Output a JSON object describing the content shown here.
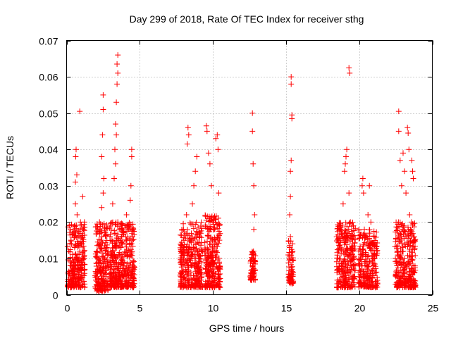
{
  "chart_data": {
    "type": "scatter",
    "title": "Day 299 of 2018, Rate Of TEC Index for receiver sthg",
    "xlabel": "GPS time / hours",
    "ylabel": "ROTI / TECUs",
    "xlim": [
      0,
      25
    ],
    "ylim": [
      0,
      0.07
    ],
    "xticks": [
      0,
      5,
      10,
      15,
      20,
      25
    ],
    "xtick_labels": [
      "0",
      "5",
      "10",
      "15",
      "20",
      "25"
    ],
    "yticks": [
      0,
      0.01,
      0.02,
      0.03,
      0.04,
      0.05,
      0.06,
      0.07
    ],
    "ytick_labels": [
      "0",
      "0.01",
      "0.02",
      "0.03",
      "0.04",
      "0.05",
      "0.06",
      "0.07"
    ],
    "grid": true,
    "marker": "+",
    "color": "#ff0000",
    "series": [
      {
        "name": "ROTI",
        "points": [
          [
            0.1,
            0.006
          ],
          [
            0.15,
            0.012
          ],
          [
            0.2,
            0.019
          ],
          [
            0.25,
            0.008
          ],
          [
            0.3,
            0.015
          ],
          [
            0.35,
            0.004
          ],
          [
            0.4,
            0.01
          ],
          [
            0.45,
            0.018
          ],
          [
            0.5,
            0.007
          ],
          [
            0.55,
            0.013
          ],
          [
            0.6,
            0.025
          ],
          [
            0.6,
            0.031
          ],
          [
            0.62,
            0.038
          ],
          [
            0.65,
            0.04
          ],
          [
            0.7,
            0.033
          ],
          [
            0.72,
            0.022
          ],
          [
            0.75,
            0.009
          ],
          [
            0.8,
            0.016
          ],
          [
            0.85,
            0.005
          ],
          [
            0.9,
            0.012
          ],
          [
            0.95,
            0.02
          ],
          [
            1.0,
            0.008
          ],
          [
            1.05,
            0.014
          ],
          [
            1.1,
            0.027
          ],
          [
            0.9,
            0.0505
          ],
          [
            0.3,
            0.002
          ],
          [
            0.5,
            0.003
          ],
          [
            0.8,
            0.0025
          ],
          [
            1.2,
            0.01
          ],
          [
            0.4,
            0.0165
          ],
          [
            2.0,
            0.004
          ],
          [
            2.1,
            0.012
          ],
          [
            2.15,
            0.018
          ],
          [
            2.2,
            0.008
          ],
          [
            2.25,
            0.02
          ],
          [
            2.3,
            0.006
          ],
          [
            2.35,
            0.015
          ],
          [
            2.4,
            0.024
          ],
          [
            2.45,
            0.044
          ],
          [
            2.5,
            0.055
          ],
          [
            2.5,
            0.051
          ],
          [
            2.55,
            0.032
          ],
          [
            2.6,
            0.01
          ],
          [
            2.65,
            0.017
          ],
          [
            2.7,
            0.005
          ],
          [
            2.75,
            0.013
          ],
          [
            2.2,
            0.0015
          ],
          [
            2.4,
            0.038
          ],
          [
            2.5,
            0.028
          ],
          [
            2.3,
            0.0095
          ],
          [
            3.0,
            0.007
          ],
          [
            3.1,
            0.015
          ],
          [
            3.15,
            0.025
          ],
          [
            3.2,
            0.009
          ],
          [
            3.25,
            0.032
          ],
          [
            3.3,
            0.04
          ],
          [
            3.35,
            0.047
          ],
          [
            3.4,
            0.053
          ],
          [
            3.45,
            0.058
          ],
          [
            3.45,
            0.0635
          ],
          [
            3.5,
            0.066
          ],
          [
            3.5,
            0.061
          ],
          [
            3.4,
            0.044
          ],
          [
            3.35,
            0.036
          ],
          [
            3.5,
            0.02
          ],
          [
            3.55,
            0.011
          ],
          [
            3.6,
            0.005
          ],
          [
            3.7,
            0.013
          ],
          [
            3.8,
            0.018
          ],
          [
            3.9,
            0.008
          ],
          [
            4.0,
            0.014
          ],
          [
            4.1,
            0.022
          ],
          [
            4.2,
            0.006
          ],
          [
            4.3,
            0.012
          ],
          [
            4.35,
            0.026
          ],
          [
            4.4,
            0.03
          ],
          [
            4.45,
            0.038
          ],
          [
            4.45,
            0.04
          ],
          [
            4.5,
            0.016
          ],
          [
            4.55,
            0.009
          ],
          [
            4.6,
            0.004
          ],
          [
            3.6,
            0.018
          ],
          [
            4.0,
            0.003
          ],
          [
            3.2,
            0.0025
          ],
          [
            7.8,
            0.005
          ],
          [
            7.9,
            0.012
          ],
          [
            8.0,
            0.018
          ],
          [
            8.1,
            0.008
          ],
          [
            8.2,
            0.022
          ],
          [
            8.25,
            0.0415
          ],
          [
            8.3,
            0.046
          ],
          [
            8.35,
            0.044
          ],
          [
            8.4,
            0.015
          ],
          [
            8.5,
            0.006
          ],
          [
            8.6,
            0.025
          ],
          [
            8.7,
            0.03
          ],
          [
            8.8,
            0.034
          ],
          [
            8.9,
            0.038
          ],
          [
            9.0,
            0.011
          ],
          [
            9.1,
            0.016
          ],
          [
            9.2,
            0.004
          ],
          [
            9.25,
            0.009
          ],
          [
            8.0,
            0.0025
          ],
          [
            9.5,
            0.007
          ],
          [
            9.55,
            0.0465
          ],
          [
            9.6,
            0.045
          ],
          [
            9.7,
            0.039
          ],
          [
            9.8,
            0.036
          ],
          [
            9.9,
            0.03
          ],
          [
            10.0,
            0.02
          ],
          [
            10.1,
            0.012
          ],
          [
            10.2,
            0.043
          ],
          [
            10.3,
            0.044
          ],
          [
            10.35,
            0.04
          ],
          [
            10.4,
            0.028
          ],
          [
            10.45,
            0.015
          ],
          [
            9.6,
            0.003
          ],
          [
            9.8,
            0.002
          ],
          [
            10.0,
            0.0085
          ],
          [
            12.6,
            0.006
          ],
          [
            12.65,
            0.011
          ],
          [
            12.7,
            0.045
          ],
          [
            12.7,
            0.05
          ],
          [
            12.75,
            0.036
          ],
          [
            12.8,
            0.03
          ],
          [
            12.85,
            0.022
          ],
          [
            12.8,
            0.018
          ],
          [
            12.7,
            0.008
          ],
          [
            12.75,
            0.005
          ],
          [
            12.6,
            0.0095
          ],
          [
            15.2,
            0.004
          ],
          [
            15.25,
            0.01
          ],
          [
            15.3,
            0.016
          ],
          [
            15.35,
            0.06
          ],
          [
            15.35,
            0.058
          ],
          [
            15.4,
            0.0495
          ],
          [
            15.4,
            0.0485
          ],
          [
            15.35,
            0.037
          ],
          [
            15.3,
            0.034
          ],
          [
            15.3,
            0.027
          ],
          [
            15.25,
            0.022
          ],
          [
            15.45,
            0.014
          ],
          [
            15.4,
            0.007
          ],
          [
            15.35,
            0.0035
          ],
          [
            18.5,
            0.004
          ],
          [
            18.6,
            0.012
          ],
          [
            18.7,
            0.018
          ],
          [
            18.8,
            0.008
          ],
          [
            18.9,
            0.025
          ],
          [
            19.0,
            0.034
          ],
          [
            19.05,
            0.036
          ],
          [
            19.1,
            0.038
          ],
          [
            19.15,
            0.04
          ],
          [
            19.2,
            0.015
          ],
          [
            19.25,
            0.006
          ],
          [
            19.3,
            0.0625
          ],
          [
            19.35,
            0.061
          ],
          [
            19.3,
            0.028
          ],
          [
            19.4,
            0.02
          ],
          [
            19.5,
            0.01
          ],
          [
            19.6,
            0.016
          ],
          [
            19.7,
            0.005
          ],
          [
            18.6,
            0.003
          ],
          [
            19.0,
            0.002
          ],
          [
            20.0,
            0.005
          ],
          [
            20.1,
            0.012
          ],
          [
            20.2,
            0.03
          ],
          [
            20.25,
            0.032
          ],
          [
            20.3,
            0.028
          ],
          [
            20.35,
            0.018
          ],
          [
            20.4,
            0.008
          ],
          [
            20.5,
            0.014
          ],
          [
            20.6,
            0.022
          ],
          [
            20.7,
            0.03
          ],
          [
            20.8,
            0.02
          ],
          [
            20.9,
            0.01
          ],
          [
            21.0,
            0.016
          ],
          [
            21.1,
            0.006
          ],
          [
            21.2,
            0.012
          ],
          [
            20.3,
            0.0025
          ],
          [
            20.8,
            0.004
          ],
          [
            22.5,
            0.005
          ],
          [
            22.6,
            0.012
          ],
          [
            22.7,
            0.045
          ],
          [
            22.7,
            0.0505
          ],
          [
            22.8,
            0.037
          ],
          [
            22.9,
            0.03
          ],
          [
            23.0,
            0.039
          ],
          [
            23.1,
            0.034
          ],
          [
            23.2,
            0.028
          ],
          [
            23.3,
            0.046
          ],
          [
            23.35,
            0.0445
          ],
          [
            23.4,
            0.04
          ],
          [
            23.45,
            0.022
          ],
          [
            23.5,
            0.018
          ],
          [
            23.55,
            0.012
          ],
          [
            23.6,
            0.037
          ],
          [
            23.65,
            0.034
          ],
          [
            23.7,
            0.032
          ],
          [
            23.75,
            0.006
          ],
          [
            23.8,
            0.015
          ],
          [
            22.6,
            0.0035
          ],
          [
            23.0,
            0.0045
          ],
          [
            23.5,
            0.005
          ]
        ],
        "clusters": [
          {
            "x_start": 0.05,
            "x_end": 1.25,
            "y_low": 0.002,
            "y_high": 0.02,
            "count": 260
          },
          {
            "x_start": 1.95,
            "x_end": 2.85,
            "y_low": 0.001,
            "y_high": 0.02,
            "count": 200
          },
          {
            "x_start": 2.95,
            "x_end": 4.65,
            "y_low": 0.002,
            "y_high": 0.02,
            "count": 380
          },
          {
            "x_start": 7.75,
            "x_end": 9.3,
            "y_low": 0.002,
            "y_high": 0.02,
            "count": 300
          },
          {
            "x_start": 9.45,
            "x_end": 10.5,
            "y_low": 0.002,
            "y_high": 0.022,
            "count": 260
          },
          {
            "x_start": 12.55,
            "x_end": 12.9,
            "y_low": 0.004,
            "y_high": 0.012,
            "count": 60
          },
          {
            "x_start": 15.15,
            "x_end": 15.5,
            "y_low": 0.003,
            "y_high": 0.015,
            "count": 70
          },
          {
            "x_start": 18.45,
            "x_end": 19.75,
            "y_low": 0.002,
            "y_high": 0.02,
            "count": 260
          },
          {
            "x_start": 19.95,
            "x_end": 21.25,
            "y_low": 0.002,
            "y_high": 0.018,
            "count": 240
          },
          {
            "x_start": 22.45,
            "x_end": 23.85,
            "y_low": 0.002,
            "y_high": 0.02,
            "count": 290
          }
        ]
      }
    ]
  }
}
